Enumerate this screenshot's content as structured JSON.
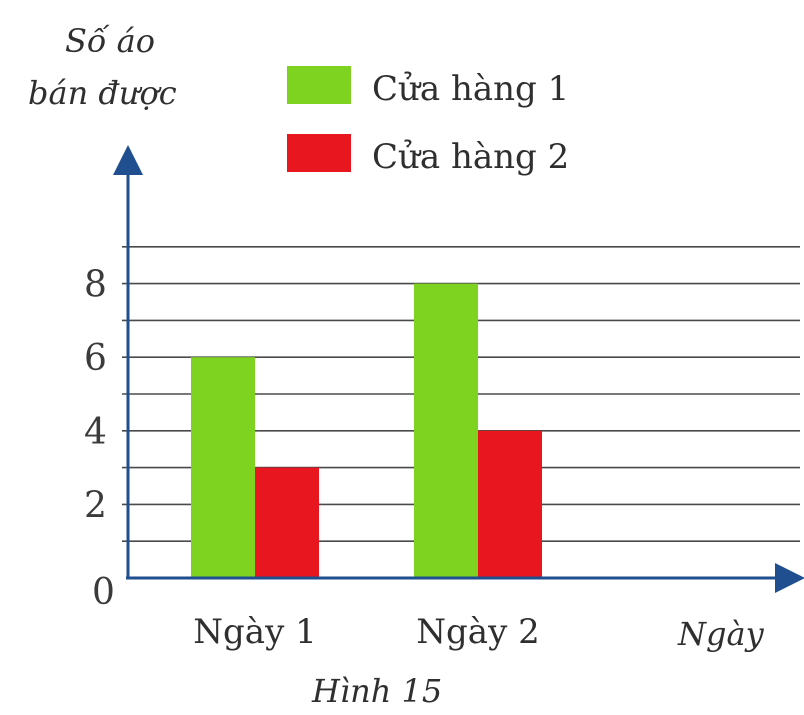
{
  "chart_data": {
    "type": "bar",
    "categories": [
      "Ngày 1",
      "Ngày 2"
    ],
    "series": [
      {
        "name": "Cửa hàng 1",
        "color": "#7ed321",
        "values": [
          6,
          8
        ]
      },
      {
        "name": "Cửa hàng 2",
        "color": "#e8161e",
        "values": [
          3,
          4
        ]
      }
    ],
    "ylabel": "Số áo bán được",
    "ylabel_lines": [
      "Số áo",
      "bán được"
    ],
    "xlabel": "Ngày",
    "yticks": [
      0,
      2,
      4,
      6,
      8
    ],
    "ylim": [
      0,
      9
    ],
    "grid": true,
    "legend_position": "top",
    "caption": "Hình 15"
  }
}
